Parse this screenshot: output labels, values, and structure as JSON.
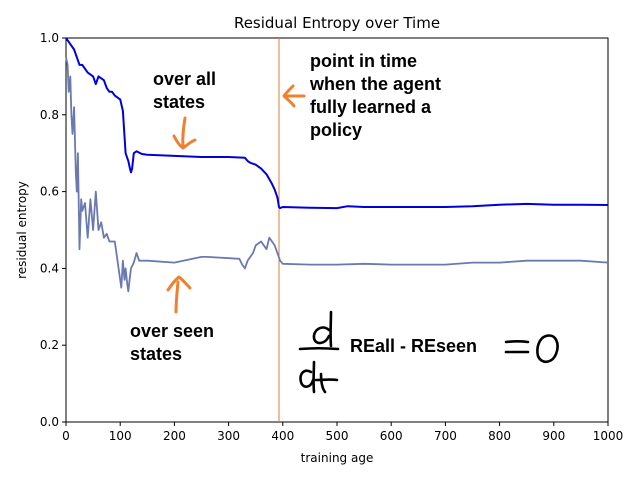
{
  "chart_data": {
    "type": "line",
    "title": "Residual Entropy over Time",
    "xlabel": "training age",
    "ylabel": "residual entropy",
    "xlim": [
      0,
      1000
    ],
    "ylim": [
      0.0,
      1.0
    ],
    "xticks": [
      "0",
      "100",
      "200",
      "300",
      "400",
      "500",
      "600",
      "700",
      "800",
      "900",
      "1000"
    ],
    "yticks": [
      "0.0",
      "0.2",
      "0.4",
      "0.6",
      "0.8",
      "1.0"
    ],
    "grid": false,
    "colors": {
      "all": "#0000dd",
      "seen": "#6a7ab0",
      "marker": "#e07b39",
      "arrow": "#f08030"
    },
    "series": [
      {
        "id": "all",
        "x": [
          0,
          5,
          10,
          15,
          20,
          25,
          30,
          40,
          50,
          55,
          60,
          70,
          75,
          80,
          85,
          90,
          100,
          105,
          110,
          115,
          118,
          120,
          122,
          125,
          130,
          140,
          150,
          200,
          250,
          300,
          330,
          335,
          340,
          350,
          360,
          370,
          380,
          385,
          390,
          393,
          395,
          400,
          450,
          500,
          520,
          550,
          600,
          650,
          700,
          750,
          800,
          850,
          900,
          950,
          1000
        ],
        "y": [
          1.0,
          0.99,
          0.98,
          0.97,
          0.95,
          0.93,
          0.93,
          0.91,
          0.9,
          0.88,
          0.9,
          0.89,
          0.87,
          0.86,
          0.86,
          0.85,
          0.84,
          0.81,
          0.7,
          0.68,
          0.66,
          0.65,
          0.66,
          0.7,
          0.705,
          0.698,
          0.696,
          0.693,
          0.69,
          0.69,
          0.688,
          0.68,
          0.675,
          0.67,
          0.66,
          0.645,
          0.62,
          0.605,
          0.585,
          0.56,
          0.557,
          0.56,
          0.558,
          0.557,
          0.562,
          0.56,
          0.56,
          0.56,
          0.56,
          0.562,
          0.566,
          0.568,
          0.566,
          0.566,
          0.565
        ]
      },
      {
        "id": "seen",
        "x": [
          0,
          3,
          5,
          8,
          10,
          12,
          15,
          18,
          20,
          22,
          25,
          28,
          30,
          35,
          40,
          45,
          50,
          55,
          60,
          65,
          70,
          75,
          80,
          90,
          95,
          100,
          102,
          105,
          108,
          110,
          113,
          115,
          118,
          120,
          125,
          130,
          135,
          140,
          150,
          200,
          250,
          260,
          320,
          325,
          330,
          335,
          340,
          345,
          350,
          360,
          370,
          375,
          380,
          385,
          390,
          395,
          400,
          450,
          500,
          550,
          600,
          650,
          700,
          750,
          800,
          850,
          900,
          950,
          1000
        ],
        "y": [
          0.95,
          0.93,
          0.86,
          0.9,
          0.8,
          0.75,
          0.82,
          0.65,
          0.6,
          0.7,
          0.45,
          0.58,
          0.55,
          0.57,
          0.48,
          0.58,
          0.5,
          0.6,
          0.5,
          0.52,
          0.48,
          0.49,
          0.47,
          0.47,
          0.42,
          0.37,
          0.35,
          0.42,
          0.37,
          0.4,
          0.36,
          0.34,
          0.38,
          0.4,
          0.415,
          0.44,
          0.42,
          0.42,
          0.42,
          0.415,
          0.43,
          0.43,
          0.425,
          0.41,
          0.4,
          0.42,
          0.43,
          0.44,
          0.46,
          0.47,
          0.45,
          0.48,
          0.47,
          0.46,
          0.44,
          0.42,
          0.412,
          0.41,
          0.41,
          0.412,
          0.41,
          0.41,
          0.41,
          0.415,
          0.415,
          0.42,
          0.42,
          0.42,
          0.415
        ]
      }
    ],
    "marker_x": 393,
    "annotations": {
      "over_all_line1": "over all",
      "over_all_line2": "states",
      "over_seen_line1": "over seen",
      "over_seen_line2": "states",
      "policy_line1": "point in time",
      "policy_line2": "when the agent",
      "policy_line3": "fully learned a",
      "policy_line4": "policy",
      "formula_text": "REall - REseen"
    }
  }
}
